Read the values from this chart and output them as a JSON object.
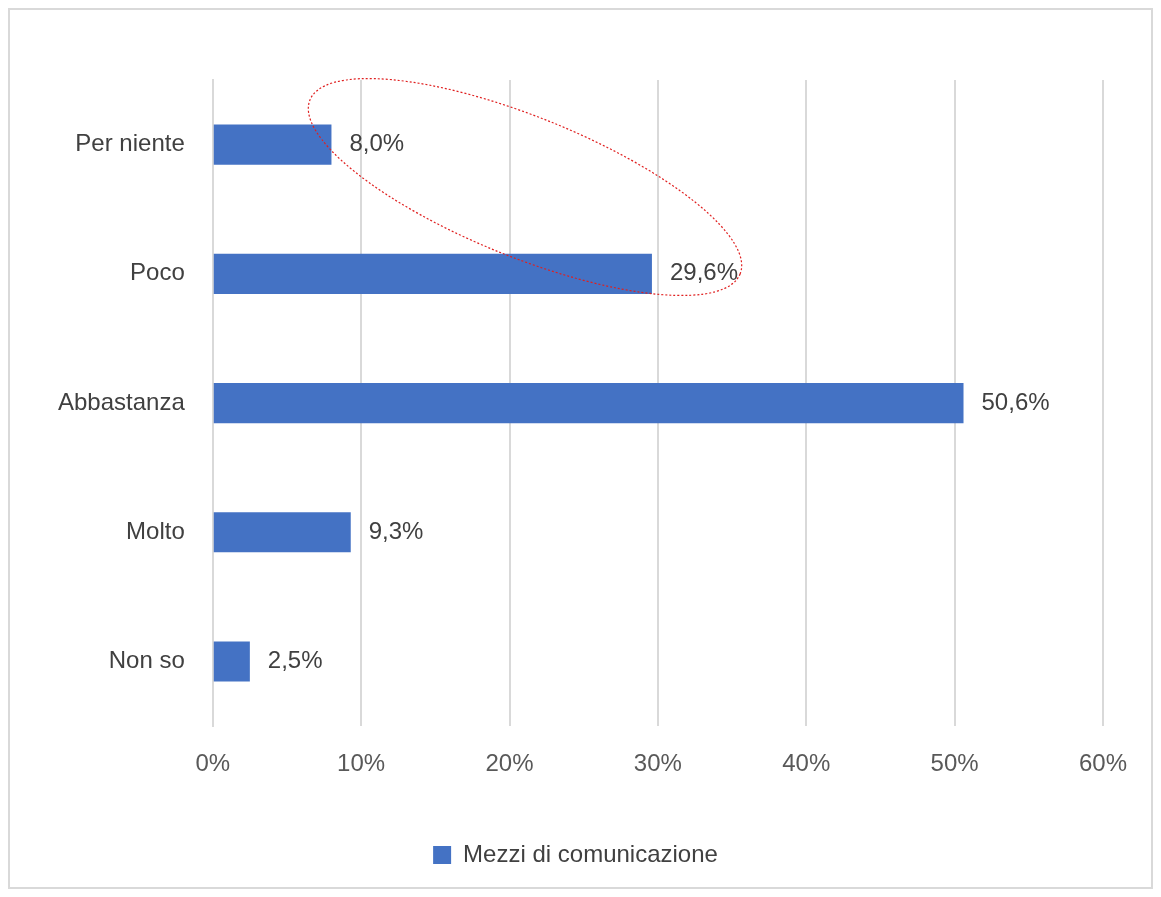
{
  "chart_data": {
    "type": "bar",
    "orientation": "horizontal",
    "categories": [
      "Per niente",
      "Poco",
      "Abbastanza",
      "Molto",
      "Non so"
    ],
    "series": [
      {
        "name": "Mezzi di comunicazione",
        "color": "#4472c4",
        "values": [
          8.0,
          29.6,
          50.6,
          9.3,
          2.5
        ],
        "value_labels": [
          "8,0%",
          "29,6%",
          "50,6%",
          "9,3%",
          "2,5%"
        ]
      }
    ],
    "xlim": [
      0,
      60
    ],
    "xticks": [
      {
        "value": 0,
        "label": "0%"
      },
      {
        "value": 10,
        "label": "10%"
      },
      {
        "value": 20,
        "label": "20%"
      },
      {
        "value": 30,
        "label": "30%"
      },
      {
        "value": 40,
        "label": "40%"
      },
      {
        "value": 50,
        "label": "50%"
      },
      {
        "value": 60,
        "label": "60%"
      }
    ],
    "grid": "x",
    "legend": "bottom"
  }
}
